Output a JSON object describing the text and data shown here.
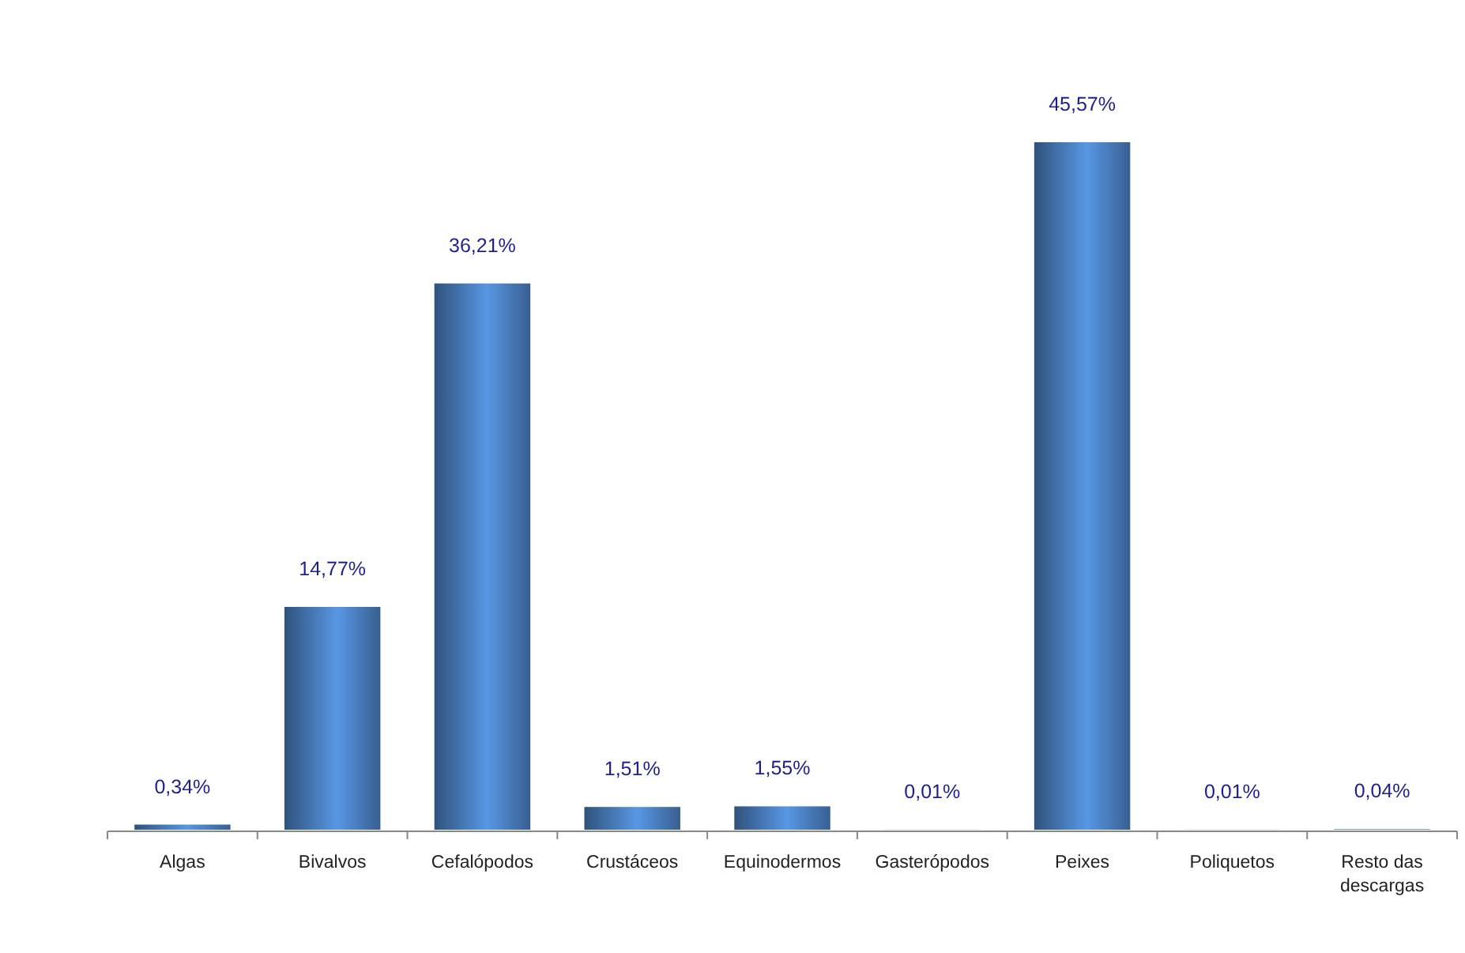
{
  "chart_data": {
    "type": "bar",
    "categories": [
      "Algas",
      "Bivalvos",
      "Cefalópodos",
      "Crustáceos",
      "Equinodermos",
      "Gasterópodos",
      "Peixes",
      "Poliquetos",
      "Resto das descargas"
    ],
    "values": [
      0.34,
      14.77,
      36.21,
      1.51,
      1.55,
      0.01,
      45.57,
      0.01,
      0.04
    ],
    "value_labels": [
      "0,34%",
      "14,77%",
      "36,21%",
      "1,51%",
      "1,55%",
      "0,01%",
      "45,57%",
      "0,01%",
      "0,04%"
    ],
    "color": "#4a7ebf"
  }
}
